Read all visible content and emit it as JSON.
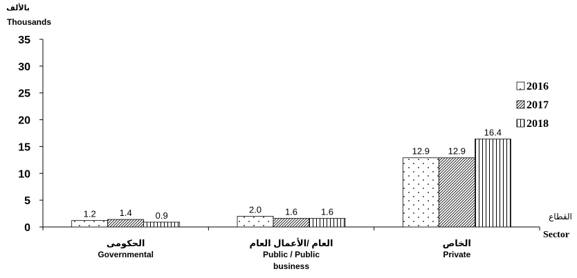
{
  "chart_data": {
    "type": "bar",
    "ylabel_ar": "بالألف",
    "ylabel": "Thousands",
    "xlabel_ar": "القطاع",
    "xlabel": "Sector",
    "ylim": [
      0,
      35
    ],
    "yticks": [
      0,
      5,
      10,
      15,
      20,
      25,
      30,
      35
    ],
    "categories": [
      {
        "ar": "الحكومى",
        "en": [
          "Governmental"
        ]
      },
      {
        "ar": "العام /الأعمال العام",
        "en": [
          "Public / Public",
          "business"
        ]
      },
      {
        "ar": "الخاص",
        "en": [
          "Private"
        ]
      }
    ],
    "series": [
      {
        "name": "2016",
        "pattern": "dots",
        "values": [
          1.2,
          2.0,
          12.9
        ],
        "labels": [
          "1.2",
          "2.0",
          "12.9"
        ]
      },
      {
        "name": "2017",
        "pattern": "diagonal",
        "values": [
          1.4,
          1.6,
          12.9
        ],
        "labels": [
          "1.4",
          "1.6",
          "12.9"
        ]
      },
      {
        "name": "2018",
        "pattern": "vertical",
        "values": [
          0.9,
          1.6,
          16.4
        ],
        "labels": [
          "0.9",
          "1.6",
          "16.4"
        ]
      }
    ],
    "grid": false,
    "legend_position": "right"
  }
}
